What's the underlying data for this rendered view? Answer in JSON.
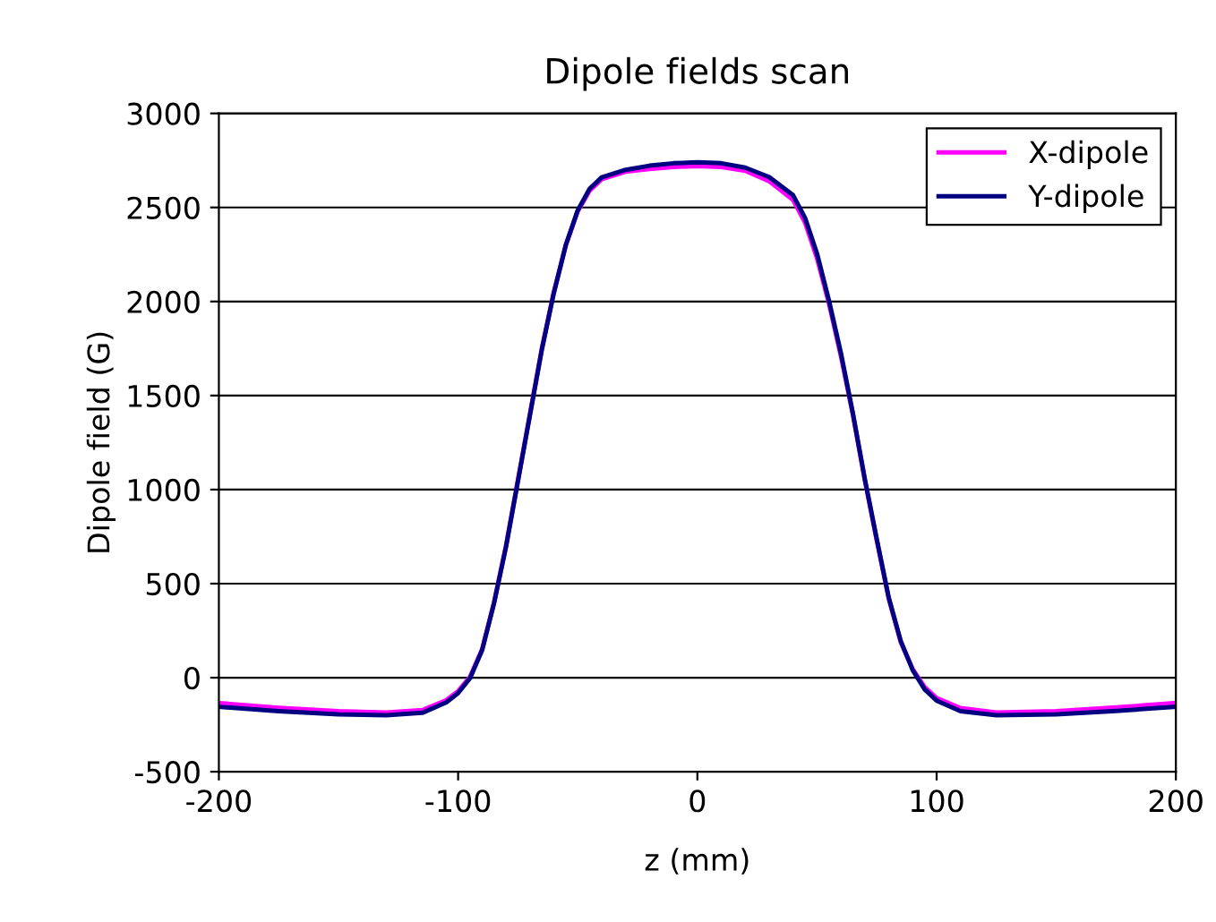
{
  "chart_data": {
    "type": "line",
    "title": "Dipole fields scan",
    "xlabel": "z (mm)",
    "ylabel": "Dipole field (G)",
    "xlim": [
      -200,
      200
    ],
    "xticks": [
      -200,
      -100,
      0,
      100,
      200
    ],
    "ylim": [
      -500,
      3000
    ],
    "yticks": [
      -500,
      0,
      500,
      1000,
      1500,
      2000,
      2500,
      3000
    ],
    "grid": "y",
    "legend": "top right",
    "marker": "none",
    "line_style": "solid",
    "x": [
      -200,
      -175,
      -150,
      -130,
      -115,
      -105,
      -100,
      -95,
      -90,
      -85,
      -80,
      -75,
      -70,
      -65,
      -60,
      -55,
      -50,
      -45,
      -40,
      -30,
      -20,
      -10,
      0,
      10,
      20,
      30,
      40,
      45,
      50,
      55,
      60,
      65,
      70,
      75,
      80,
      85,
      90,
      95,
      100,
      110,
      125,
      150,
      175,
      200
    ],
    "series": [
      {
        "name": "X-dipole",
        "color": "#ff00ff",
        "values": [
          -135,
          -160,
          -178,
          -185,
          -172,
          -120,
          -72,
          5,
          150,
          400,
          700,
          1050,
          1400,
          1750,
          2050,
          2300,
          2480,
          2590,
          2650,
          2690,
          2705,
          2715,
          2720,
          2715,
          2695,
          2640,
          2540,
          2420,
          2230,
          1990,
          1710,
          1400,
          1050,
          730,
          420,
          190,
          45,
          -50,
          -108,
          -162,
          -185,
          -178,
          -158,
          -135
        ]
      },
      {
        "name": "Y-dipole",
        "color": "#000080",
        "values": [
          -155,
          -178,
          -195,
          -200,
          -187,
          -132,
          -82,
          -2,
          145,
          395,
          695,
          1045,
          1395,
          1745,
          2045,
          2300,
          2485,
          2600,
          2660,
          2700,
          2722,
          2735,
          2740,
          2735,
          2712,
          2662,
          2565,
          2445,
          2255,
          2005,
          1725,
          1405,
          1055,
          735,
          425,
          195,
          40,
          -62,
          -122,
          -178,
          -200,
          -195,
          -177,
          -155
        ]
      }
    ]
  }
}
